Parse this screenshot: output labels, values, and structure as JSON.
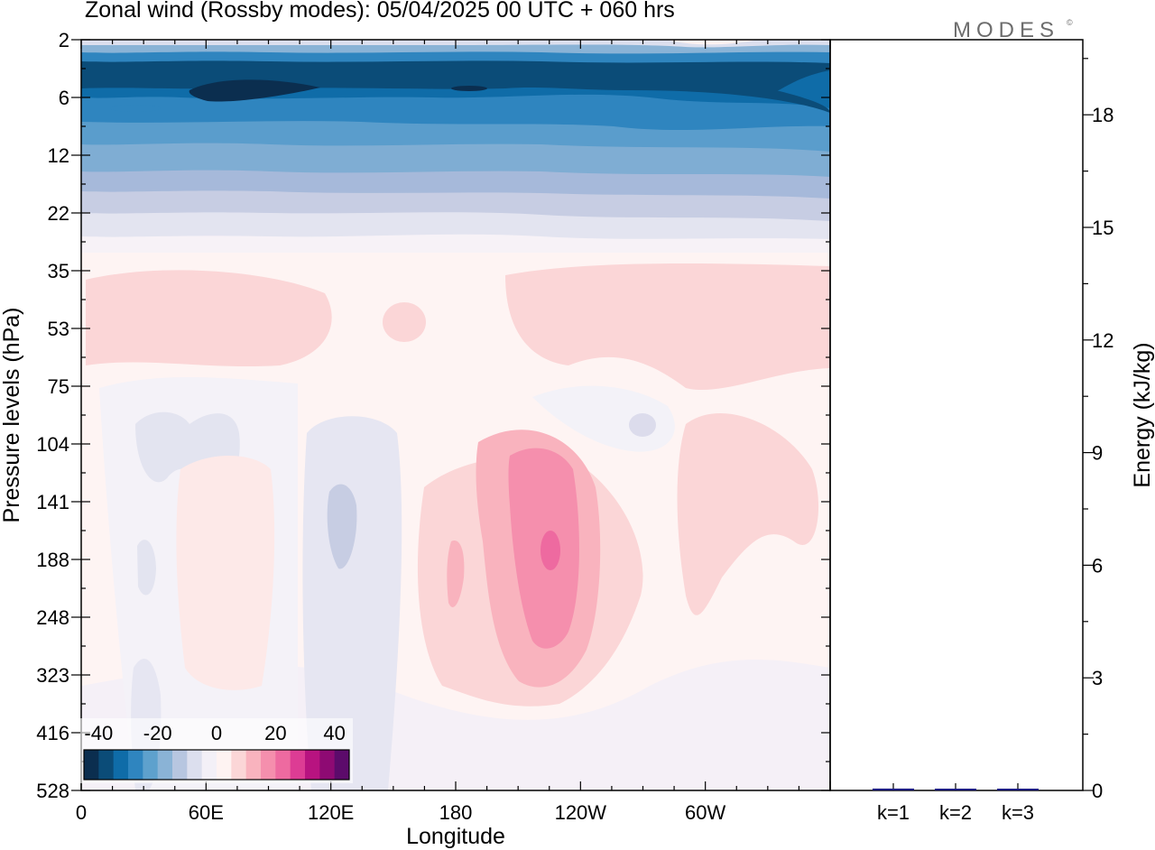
{
  "title": "Zonal wind (Rossby modes):  05/04/2025  00 UTC  + 060 hrs",
  "logo": {
    "text": "MODES",
    "mark": "©"
  },
  "chart_data": [
    {
      "type": "heatmap",
      "variable": "Zonal wind (Rossby modes)",
      "xlabel": "Longitude",
      "ylabel": "Pressure levels (hPa)",
      "x_ticks": [
        "0",
        "60E",
        "120E",
        "180",
        "120W",
        "60W"
      ],
      "x_tick_values": [
        0,
        60,
        120,
        180,
        240,
        300
      ],
      "xlim": [
        0,
        360
      ],
      "y_ticks": [
        "2",
        "6",
        "12",
        "22",
        "35",
        "53",
        "75",
        "104",
        "141",
        "188",
        "248",
        "323",
        "416",
        "528"
      ],
      "y_scale": "model-level index (tick labels are pressure in hPa)",
      "colorbar": {
        "labels": [
          "-40",
          "-20",
          "0",
          "20",
          "40"
        ],
        "label_values": [
          -40,
          -20,
          0,
          20,
          40
        ],
        "range": [
          -45,
          45
        ],
        "step": 5,
        "colors": [
          "#0b2e4f",
          "#0b4c78",
          "#0f6ca8",
          "#2f85bf",
          "#5ea1cd",
          "#8ab3d6",
          "#b7c6e0",
          "#dcdfee",
          "#f3f0f7",
          "#fef3f2",
          "#fbd6d7",
          "#f9b3be",
          "#f58fad",
          "#ee6aa0",
          "#dd3c94",
          "#b81380",
          "#8e0a73",
          "#5c0b6b"
        ]
      },
      "features": [
        {
          "type": "band",
          "lat_note": "strong easterlies near top levels",
          "value": -40
        },
        {
          "type": "max",
          "lon": 248,
          "level": "188",
          "value": 30
        }
      ]
    },
    {
      "type": "bar",
      "ylabel": "Energy (kJ/kg)",
      "categories": [
        "k=1",
        "k=2",
        "k=3"
      ],
      "values": [
        0.05,
        0.03,
        0.04
      ],
      "ylim": [
        0,
        20
      ],
      "y_ticks": [
        0,
        3,
        6,
        9,
        12,
        15,
        18
      ],
      "bar_color": "#1a1a80"
    }
  ]
}
